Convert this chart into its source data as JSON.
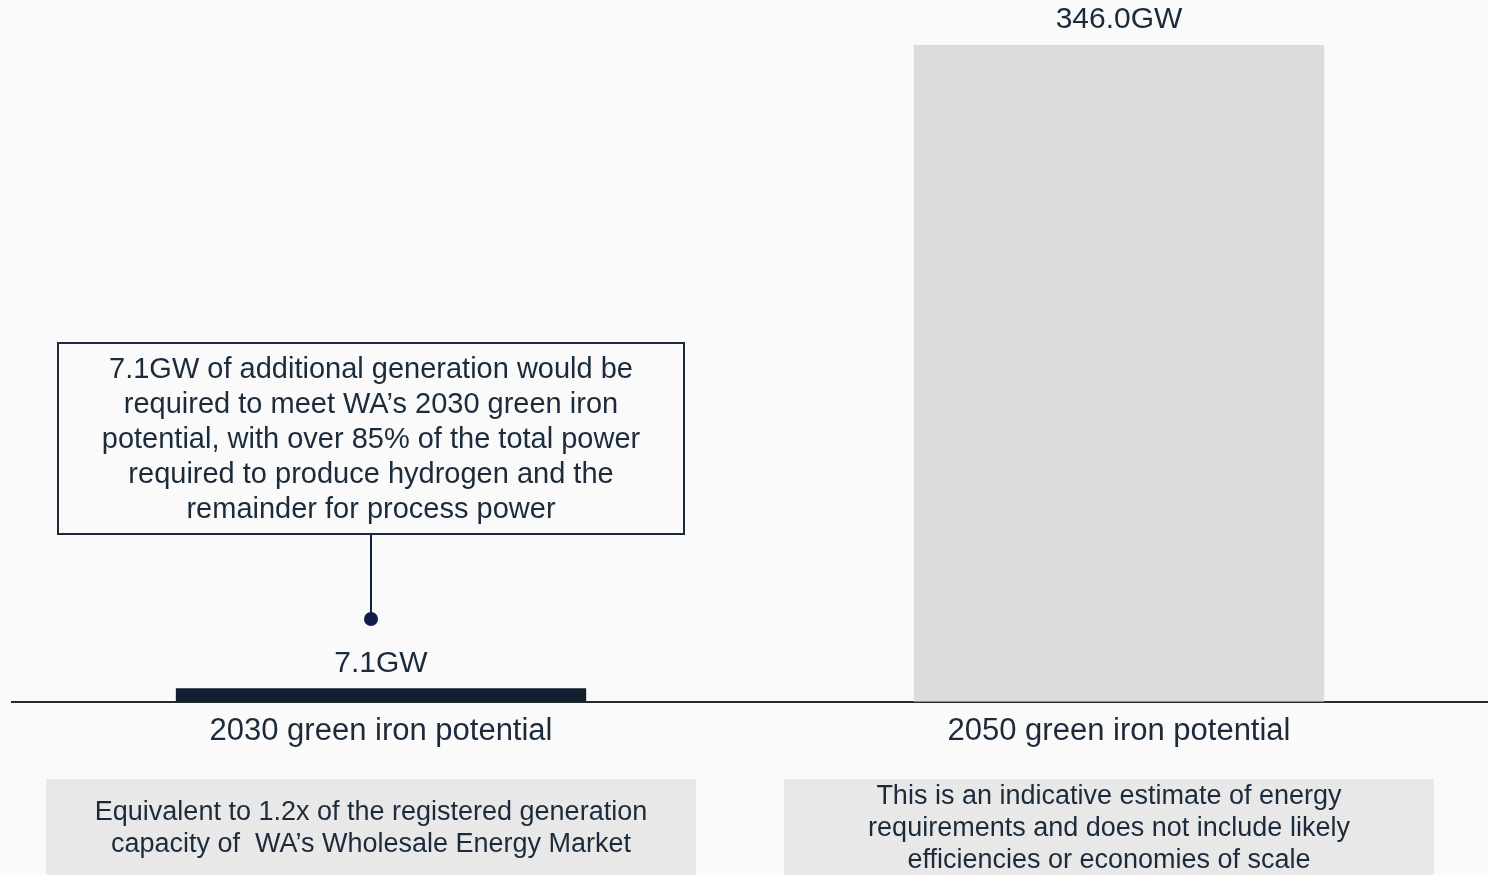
{
  "chart_data": {
    "type": "bar",
    "categories": [
      "2030 green iron potential",
      "2050 green iron potential"
    ],
    "values": [
      7.1,
      346.0
    ],
    "colors": [
      "#121f2f",
      "#dcdcdc"
    ],
    "value_labels": [
      "7.1GW",
      "346.0GW"
    ],
    "tick_labels": "x",
    "annotations": [
      "7.1GW of additional generation would be required to meet WA’s 2030 green iron potential, with over 85% of the total power required to produce hydrogen and the remainder for process power",
      "Equivalent to 1.2x of the registered generation capacity of  WA’s Wholesale Energy Market",
      "This is an indicative estimate of energy requirements and does not include likely efficiencies or economies of scale"
    ]
  }
}
